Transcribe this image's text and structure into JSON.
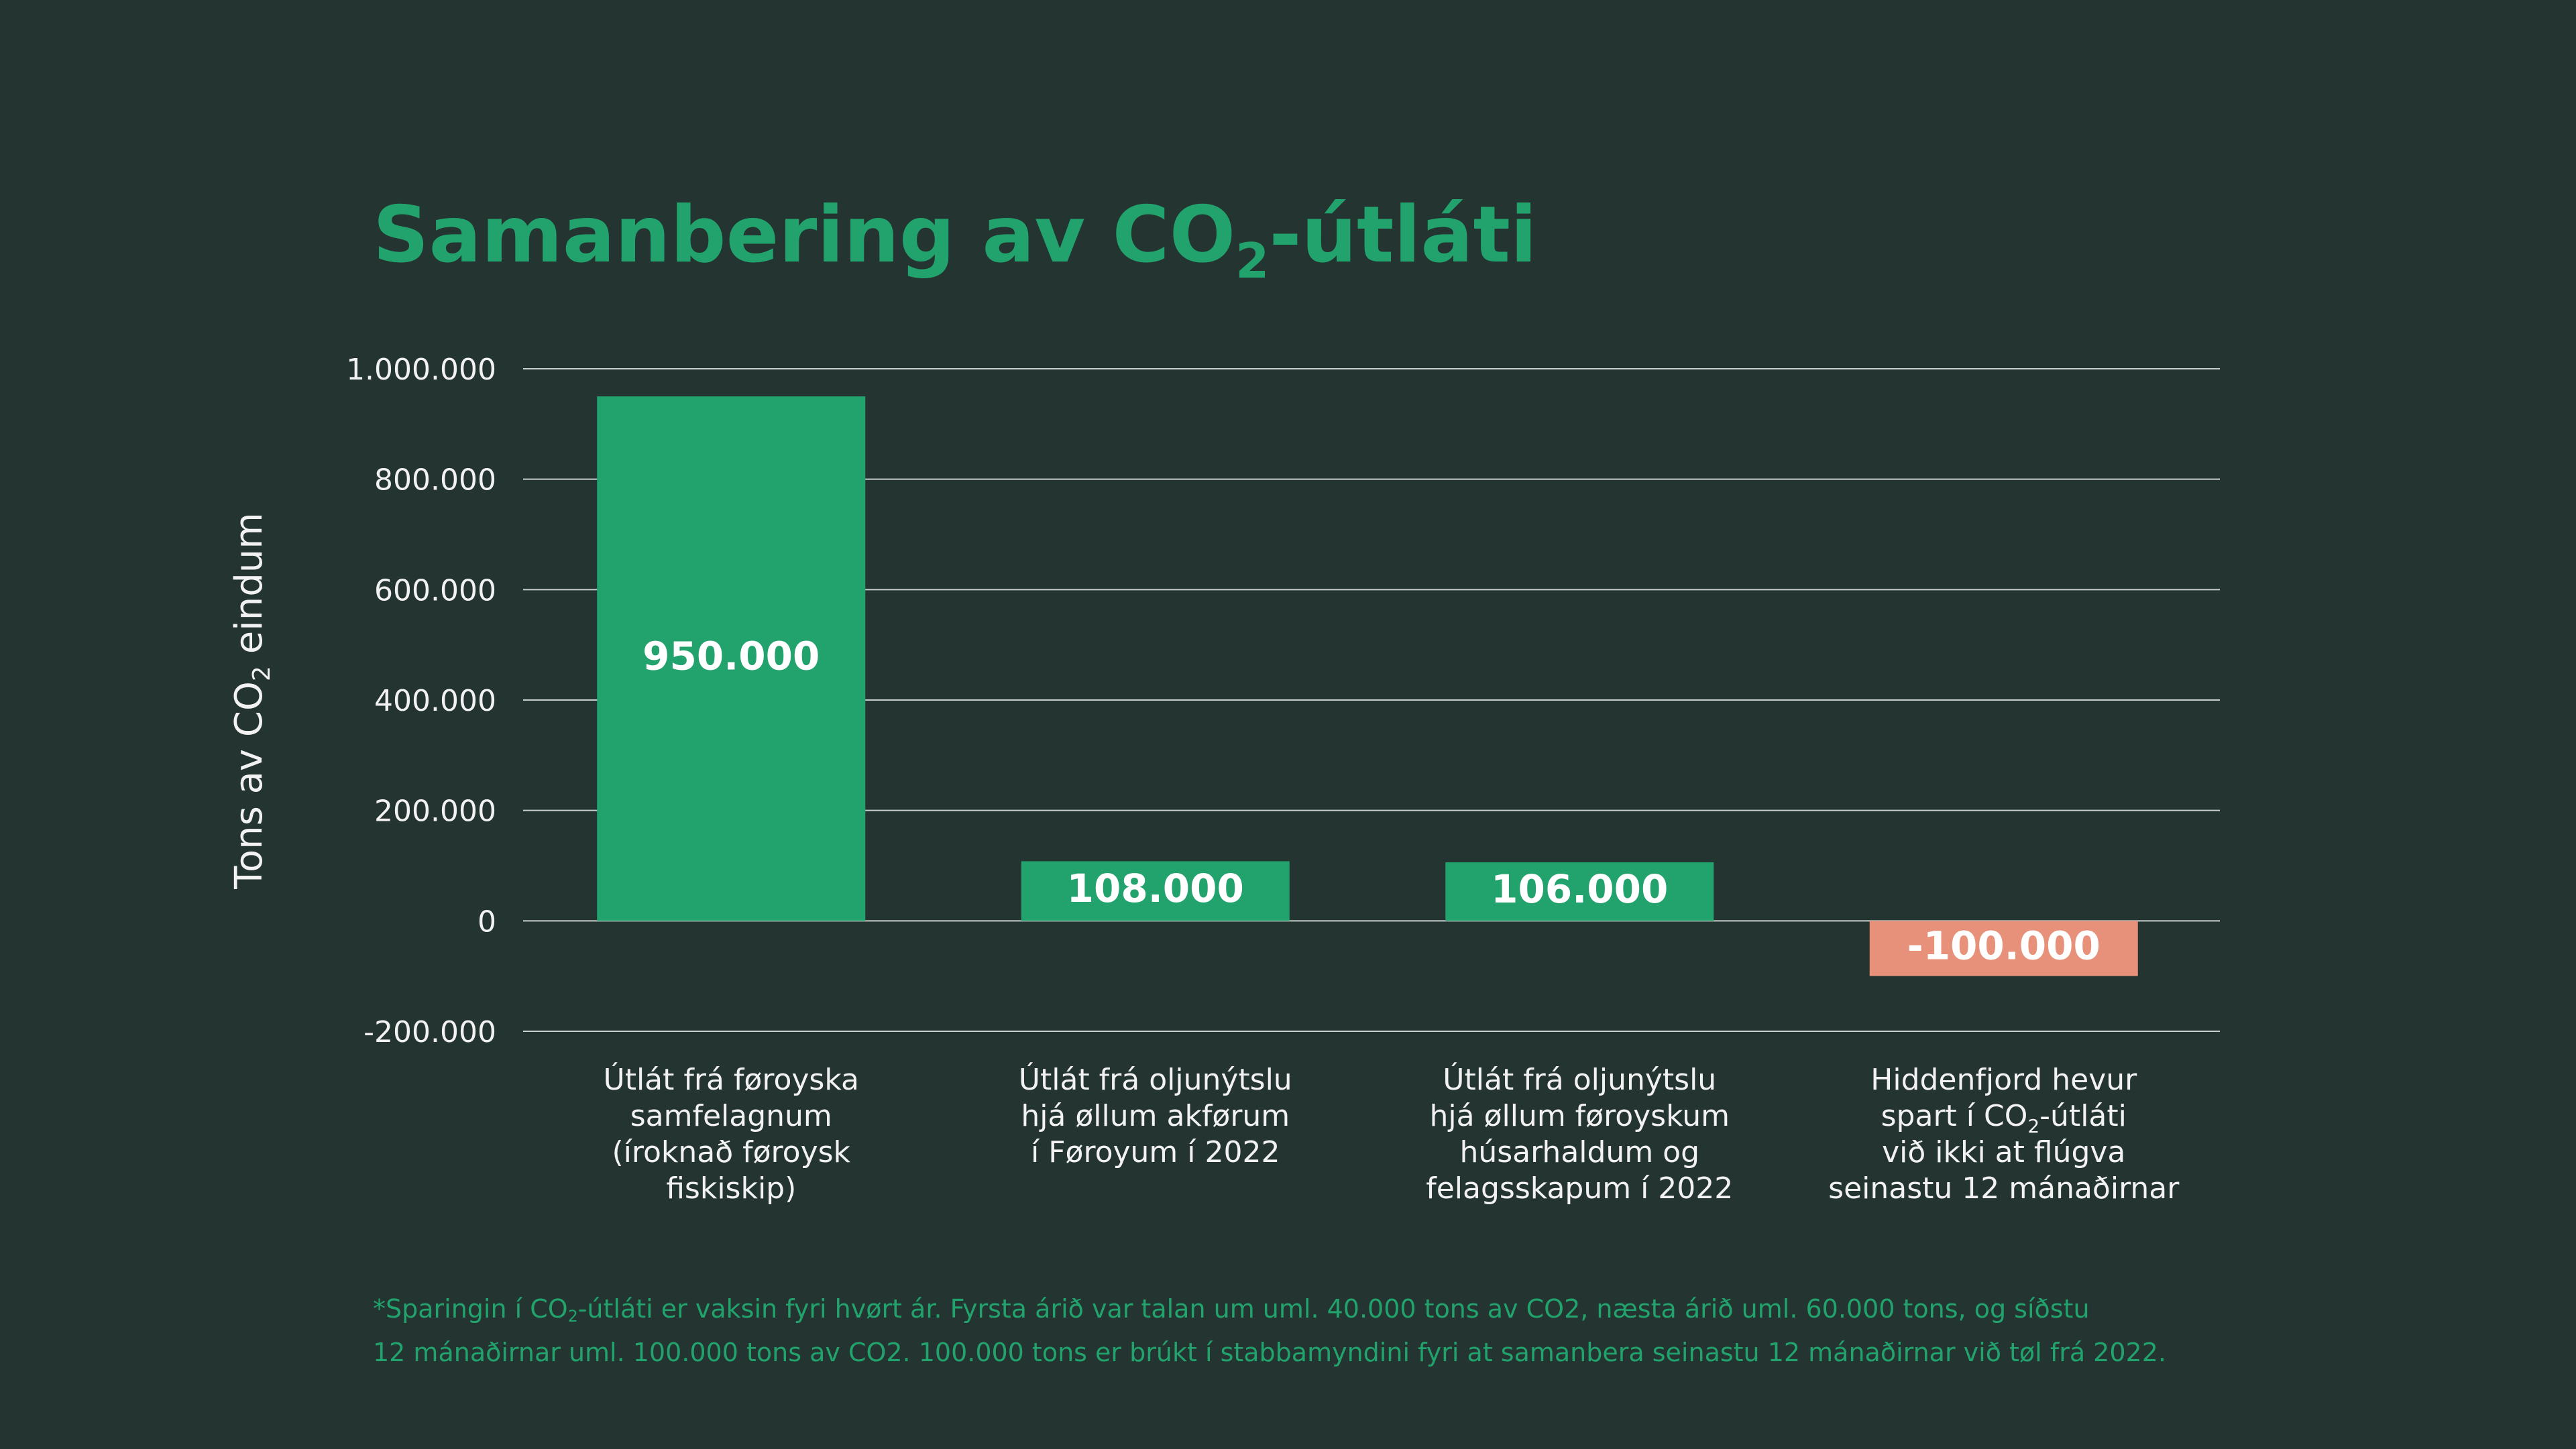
{
  "colors": {
    "background": "#243431",
    "accent_green": "#22a36d",
    "negative_salmon": "#e8917a",
    "gridline": "#c9cfcd",
    "text_light": "#f2f2f2"
  },
  "title": {
    "prefix": "Samanbering av CO",
    "subscript": "2",
    "suffix": "-útláti"
  },
  "footnote": {
    "part1": "*Sparingin í CO",
    "subscript": "2",
    "part2": "-útláti er vaksin fyri hvørt ár. Fyrsta árið var talan um uml. 40.000 tons av CO2, næsta árið uml. 60.000 tons, og síðstu",
    "line2": "12 mánaðirnar uml. 100.000 tons av CO2. 100.000 tons er brúkt í stabbamyndini fyri at samanbera seinastu 12 mánaðirnar við tøl frá 2022."
  },
  "chart_data": {
    "type": "bar",
    "ylabel": {
      "prefix": "Tons av CO",
      "subscript": "2",
      "suffix": " eindum"
    },
    "ylim": [
      -200000,
      1000000
    ],
    "grid": true,
    "y_ticks": [
      {
        "value": 1000000,
        "label": "1.000.000"
      },
      {
        "value": 800000,
        "label": "800.000"
      },
      {
        "value": 600000,
        "label": "600.000"
      },
      {
        "value": 400000,
        "label": "400.000"
      },
      {
        "value": 200000,
        "label": "200.000"
      },
      {
        "value": 0,
        "label": "0"
      },
      {
        "value": -200000,
        "label": "-200.000"
      }
    ],
    "categories": [
      [
        "Útlát frá føroyska",
        "samfelagnum",
        "(íroknað føroysk",
        "fiskiskip)"
      ],
      [
        "Útlát frá oljunýtslu",
        "hjá øllum akførum",
        "í Føroyum í 2022"
      ],
      [
        "Útlát frá oljunýtslu",
        "hjá øllum føroyskum",
        "húsarhaldum og",
        "felagsskapum í 2022"
      ],
      [
        "Hiddenfjord hevur",
        [
          "spart í CO",
          "2",
          "-útláti"
        ],
        "við ikki at flúgva",
        "seinastu 12 mánaðirnar"
      ]
    ],
    "values": [
      950000,
      108000,
      106000,
      -100000
    ],
    "value_labels": [
      "950.000",
      "108.000",
      "106.000",
      "-100.000"
    ]
  }
}
